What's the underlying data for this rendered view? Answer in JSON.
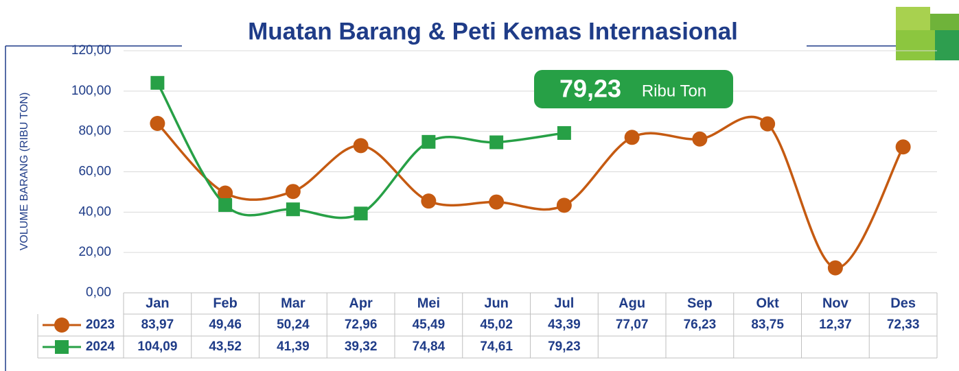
{
  "chart_data": {
    "type": "line",
    "title": "Muatan Barang & Peti Kemas Internasional",
    "y_label": "VOLUME BARANG (RIBU TON)",
    "categories": [
      "Jan",
      "Feb",
      "Mar",
      "Apr",
      "Mei",
      "Jun",
      "Jul",
      "Agu",
      "Sep",
      "Okt",
      "Nov",
      "Des"
    ],
    "series": [
      {
        "name": "2023",
        "color": "#c55a11",
        "marker": "circle",
        "values": [
          83.97,
          49.46,
          50.24,
          72.96,
          45.49,
          45.02,
          43.39,
          77.07,
          76.23,
          83.75,
          12.37,
          72.33
        ],
        "value_labels": [
          "83,97",
          "49,46",
          "50,24",
          "72,96",
          "45,49",
          "45,02",
          "43,39",
          "77,07",
          "76,23",
          "83,75",
          "12,37",
          "72,33"
        ]
      },
      {
        "name": "2024",
        "color": "#27a046",
        "marker": "square",
        "values": [
          104.09,
          43.52,
          41.39,
          39.32,
          74.84,
          74.61,
          79.23,
          null,
          null,
          null,
          null,
          null
        ],
        "value_labels": [
          "104,09",
          "43,52",
          "41,39",
          "39,32",
          "74,84",
          "74,61",
          "79,23",
          null,
          null,
          null,
          null,
          null
        ]
      }
    ],
    "ylim": [
      0,
      120
    ],
    "yticks": [
      {
        "value": 0,
        "label": "0,00"
      },
      {
        "value": 20,
        "label": "20,00"
      },
      {
        "value": 40,
        "label": "40,00"
      },
      {
        "value": 60,
        "label": "60,00"
      },
      {
        "value": 80,
        "label": "80,00"
      },
      {
        "value": 100,
        "label": "100,00"
      },
      {
        "value": 120,
        "label": "120,00"
      }
    ],
    "grid": true,
    "smooth": true,
    "annotation": {
      "value_text": "79,23",
      "unit_text": "Ribu Ton"
    }
  }
}
